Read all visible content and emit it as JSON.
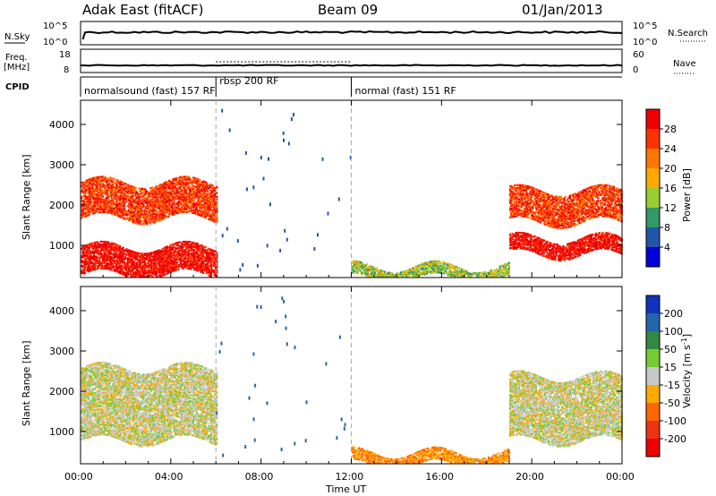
{
  "header": {
    "radar_title": "Adak East (fitACF)",
    "beam": "Beam 09",
    "date": "01/Jan/2013"
  },
  "aux_panels": {
    "nsky_label": "N.Sky",
    "nsky_ticks": [
      "10^5",
      "10^0"
    ],
    "nsearch_label": "N.Search",
    "nsearch_ticks": [
      "10^5",
      "10^0"
    ],
    "freq_label_line1": "Freq.",
    "freq_label_line2": "[MHz]",
    "freq_ticks": [
      "18",
      "8"
    ],
    "nave_label": "Nave",
    "nave_ticks": [
      "60",
      "0"
    ],
    "cpid_label": "CPID",
    "cpid_segments": [
      {
        "name": "normalsound (fast) 157 RF",
        "start_hr": 0,
        "end_hr": 6
      },
      {
        "name": "rbsp 200 RF",
        "start_hr": 6,
        "end_hr": 12
      },
      {
        "name": "normal (fast) 151 RF",
        "start_hr": 12,
        "end_hr": 24
      }
    ]
  },
  "axes": {
    "ylabel": "Slant Range [km]",
    "yticks": [
      "1000",
      "2000",
      "3000",
      "4000"
    ],
    "xlabel": "Time UT",
    "xticks": [
      "00:00",
      "04:00",
      "08:00",
      "12:00",
      "16:00",
      "20:00",
      "00:00"
    ]
  },
  "power_scale": {
    "label": "Power [dB]",
    "ticks": [
      "28",
      "24",
      "20",
      "16",
      "12",
      "8",
      "4"
    ],
    "colors": [
      "#ee0000",
      "#ff3300",
      "#ff7700",
      "#ffaa00",
      "#99cc33",
      "#339966",
      "#2255aa",
      "#0000dd"
    ]
  },
  "velocity_scale": {
    "label": "Velocity [m s",
    "label_sup": "-1",
    "label_end": "]",
    "ticks": [
      "200",
      "100",
      "50",
      "15",
      "-15",
      "-50",
      "-100",
      "-200"
    ],
    "colors": [
      "#1133bb",
      "#2266aa",
      "#338844",
      "#77cc33",
      "#c8c8c8",
      "#ffaa00",
      "#ff6600",
      "#ee3311",
      "#ee0000"
    ]
  },
  "chart_data": [
    {
      "type": "heatmap",
      "name": "power",
      "x_units": "hours UT",
      "xlim": [
        0,
        24
      ],
      "ylim": [
        200,
        4600
      ],
      "zlim": [
        0,
        32
      ],
      "observed_bands": [
        {
          "t_start": 0.0,
          "t_end": 6.0,
          "r_min": 300,
          "r_max": 1000,
          "level_db": 30
        },
        {
          "t_start": 0.0,
          "t_end": 6.0,
          "r_min": 1700,
          "r_max": 2600,
          "level_db": 26
        },
        {
          "t_start": 12.0,
          "t_end": 19.0,
          "r_min": 200,
          "r_max": 500,
          "level_db": 14
        },
        {
          "t_start": 19.0,
          "t_end": 24.0,
          "r_min": 800,
          "r_max": 1200,
          "level_db": 30
        },
        {
          "t_start": 19.0,
          "t_end": 24.0,
          "r_min": 1600,
          "r_max": 2400,
          "level_db": 26
        }
      ]
    },
    {
      "type": "heatmap",
      "name": "velocity",
      "x_units": "hours UT",
      "xlim": [
        0,
        24
      ],
      "ylim": [
        200,
        4600
      ],
      "zlim": [
        -200,
        200
      ],
      "observed_bands": [
        {
          "t_start": 0.0,
          "t_end": 6.0,
          "r_min": 800,
          "r_max": 2600,
          "level_ms": 0
        },
        {
          "t_start": 12.0,
          "t_end": 19.0,
          "r_min": 200,
          "r_max": 500,
          "level_ms": -50
        },
        {
          "t_start": 19.0,
          "t_end": 24.0,
          "r_min": 800,
          "r_max": 2400,
          "level_ms": 0
        }
      ]
    }
  ]
}
